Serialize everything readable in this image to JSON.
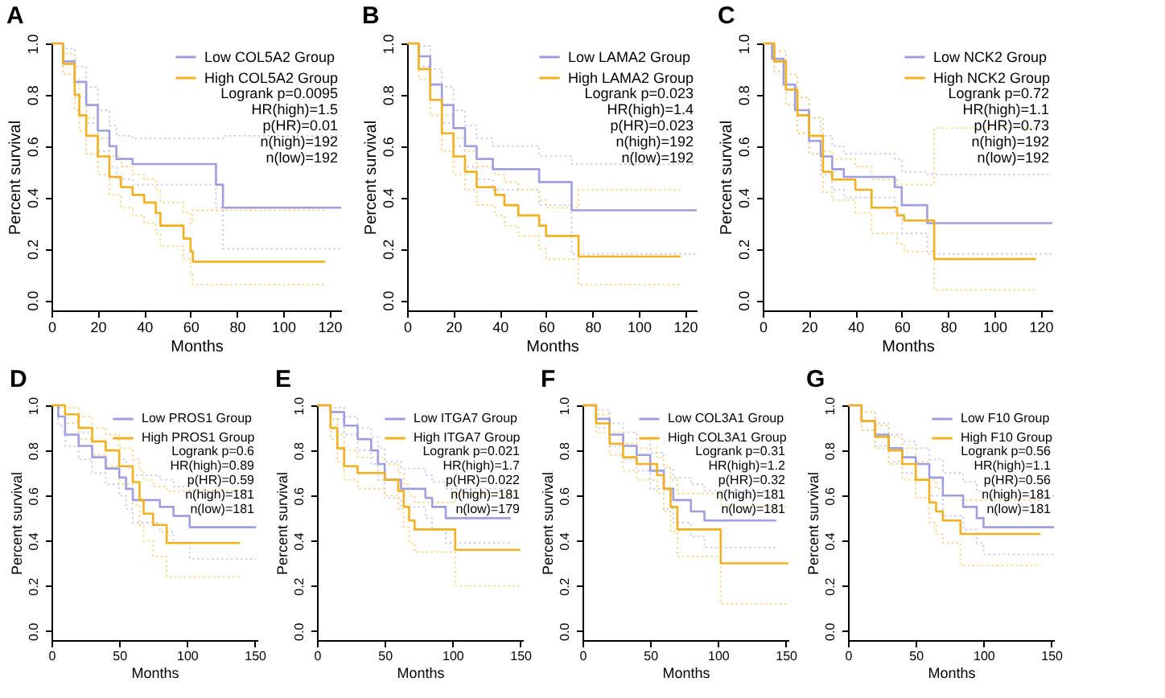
{
  "chart_data": [
    {
      "type": "step",
      "title": "A",
      "xlabel": "Months",
      "ylabel": "Percent survival",
      "xlim": [
        0,
        125
      ],
      "xticks": [
        0,
        20,
        40,
        60,
        80,
        100,
        120
      ],
      "ylim": [
        -0.04,
        1
      ],
      "yticks": [
        {
          "value": 0,
          "label": "0.0"
        },
        {
          "value": 0.2,
          "label": "0.2"
        },
        {
          "value": 0.4,
          "label": "0.4"
        },
        {
          "value": 0.6,
          "label": "0.6"
        },
        {
          "value": 0.8,
          "label": "0.8"
        },
        {
          "value": 1,
          "label": "1.0"
        }
      ],
      "legend": "top right",
      "annotations": [
        "Logrank p=0.0095",
        "HR(high)=1.5",
        "p(HR)=0.01",
        "n(high)=192",
        "n(low)=192"
      ],
      "series": [
        {
          "name": "Low COL5A2 Group",
          "color": "#9e9ee0",
          "x": [
            0,
            5,
            10,
            15,
            20,
            25,
            28,
            35,
            50,
            71,
            74,
            100,
            125
          ],
          "values": [
            1,
            0.93,
            0.85,
            0.76,
            0.66,
            0.6,
            0.55,
            0.53,
            0.53,
            0.45,
            0.36,
            0.36,
            0.36
          ]
        },
        {
          "name": "High COL5A2 Group",
          "color": "#f2b01e",
          "x": [
            0,
            5,
            10,
            12,
            15,
            20,
            25,
            30,
            35,
            40,
            45,
            47,
            55,
            57,
            60,
            61,
            118
          ],
          "values": [
            1,
            0.92,
            0.8,
            0.72,
            0.64,
            0.56,
            0.48,
            0.44,
            0.41,
            0.38,
            0.34,
            0.29,
            0.29,
            0.24,
            0.19,
            0.15,
            0.15
          ]
        },
        {
          "color": "#c8c8ef",
          "line_style": "dotted",
          "x": [
            0,
            5,
            10,
            15,
            20,
            25,
            28,
            35,
            50,
            71,
            74,
            100,
            125
          ],
          "values": [
            1,
            0.88,
            0.79,
            0.69,
            0.58,
            0.52,
            0.47,
            0.45,
            0.45,
            0.36,
            0.2,
            0.2,
            0.2
          ]
        },
        {
          "color": "#c8c8ef",
          "line_style": "dotted",
          "x": [
            0,
            5,
            10,
            15,
            20,
            25,
            28,
            35,
            50,
            71,
            74,
            100,
            125
          ],
          "values": [
            1,
            0.98,
            0.91,
            0.83,
            0.74,
            0.68,
            0.64,
            0.63,
            0.63,
            0.63,
            0.64,
            0.64,
            0.64
          ]
        },
        {
          "color": "#f8d480",
          "line_style": "dotted",
          "x": [
            0,
            5,
            10,
            12,
            15,
            20,
            25,
            30,
            35,
            40,
            45,
            47,
            55,
            57,
            60,
            61,
            118
          ],
          "values": [
            1,
            0.88,
            0.74,
            0.66,
            0.57,
            0.49,
            0.41,
            0.36,
            0.33,
            0.3,
            0.26,
            0.21,
            0.21,
            0.16,
            0.11,
            0.06,
            0.06
          ]
        },
        {
          "color": "#f8d480",
          "line_style": "dotted",
          "x": [
            0,
            5,
            10,
            12,
            15,
            20,
            25,
            30,
            35,
            40,
            45,
            47,
            55,
            57,
            60,
            61,
            118
          ],
          "values": [
            1,
            0.96,
            0.86,
            0.79,
            0.71,
            0.63,
            0.56,
            0.52,
            0.49,
            0.47,
            0.43,
            0.38,
            0.38,
            0.34,
            0.3,
            0.35,
            0.35
          ]
        }
      ]
    },
    {
      "type": "step",
      "title": "B",
      "xlabel": "Months",
      "ylabel": "Percent survival",
      "xlim": [
        0,
        125
      ],
      "xticks": [
        0,
        20,
        40,
        60,
        80,
        100,
        120
      ],
      "ylim": [
        -0.04,
        1
      ],
      "yticks": [
        {
          "value": 0,
          "label": "0.0"
        },
        {
          "value": 0.2,
          "label": "0.2"
        },
        {
          "value": 0.4,
          "label": "0.4"
        },
        {
          "value": 0.6,
          "label": "0.6"
        },
        {
          "value": 0.8,
          "label": "0.8"
        },
        {
          "value": 1,
          "label": "1.0"
        }
      ],
      "legend": "top right",
      "annotations": [
        "Logrank p=0.023",
        "HR(high)=1.4",
        "p(HR)=0.023",
        "n(high)=192",
        "n(low)=192"
      ],
      "series": [
        {
          "name": "Low LAMA2 Group",
          "color": "#9e9ee0",
          "x": [
            0,
            5,
            10,
            15,
            20,
            25,
            30,
            37,
            57,
            60,
            71,
            125
          ],
          "values": [
            1,
            0.95,
            0.84,
            0.76,
            0.67,
            0.6,
            0.55,
            0.51,
            0.46,
            0.46,
            0.35,
            0.35
          ]
        },
        {
          "name": "High LAMA2 Group",
          "color": "#f2b01e",
          "x": [
            0,
            5,
            10,
            15,
            20,
            25,
            30,
            38,
            42,
            48,
            57,
            60,
            62,
            74,
            118
          ],
          "values": [
            1,
            0.9,
            0.78,
            0.65,
            0.56,
            0.5,
            0.44,
            0.41,
            0.37,
            0.33,
            0.29,
            0.25,
            0.25,
            0.17,
            0.17
          ]
        },
        {
          "color": "#c8c8ef",
          "line_style": "dotted",
          "x": [
            0,
            5,
            10,
            15,
            20,
            25,
            30,
            37,
            57,
            60,
            71,
            125
          ],
          "values": [
            1,
            0.91,
            0.78,
            0.69,
            0.6,
            0.52,
            0.47,
            0.43,
            0.37,
            0.37,
            0.18,
            0.18
          ]
        },
        {
          "color": "#c8c8ef",
          "line_style": "dotted",
          "x": [
            0,
            5,
            10,
            15,
            20,
            25,
            30,
            37,
            57,
            60,
            71,
            125
          ],
          "values": [
            1,
            0.99,
            0.9,
            0.83,
            0.74,
            0.68,
            0.63,
            0.6,
            0.56,
            0.56,
            0.53,
            0.53
          ]
        },
        {
          "color": "#f8d480",
          "line_style": "dotted",
          "x": [
            0,
            5,
            10,
            15,
            20,
            25,
            30,
            38,
            42,
            48,
            57,
            60,
            62,
            74,
            118
          ],
          "values": [
            1,
            0.86,
            0.72,
            0.58,
            0.49,
            0.43,
            0.37,
            0.33,
            0.29,
            0.25,
            0.2,
            0.16,
            0.16,
            0.06,
            0.06
          ]
        },
        {
          "color": "#f8d480",
          "line_style": "dotted",
          "x": [
            0,
            5,
            10,
            15,
            20,
            25,
            30,
            38,
            42,
            48,
            57,
            60,
            62,
            74,
            118
          ],
          "values": [
            1,
            0.95,
            0.84,
            0.72,
            0.63,
            0.58,
            0.52,
            0.49,
            0.46,
            0.43,
            0.39,
            0.36,
            0.36,
            0.43,
            0.43
          ]
        }
      ]
    },
    {
      "type": "step",
      "title": "C",
      "xlabel": "Months",
      "ylabel": "Percent survival",
      "xlim": [
        0,
        125
      ],
      "xticks": [
        0,
        20,
        40,
        60,
        80,
        100,
        120
      ],
      "ylim": [
        -0.04,
        1
      ],
      "yticks": [
        {
          "value": 0,
          "label": "0.0"
        },
        {
          "value": 0.2,
          "label": "0.2"
        },
        {
          "value": 0.4,
          "label": "0.4"
        },
        {
          "value": 0.6,
          "label": "0.6"
        },
        {
          "value": 0.8,
          "label": "0.8"
        },
        {
          "value": 1,
          "label": "1.0"
        }
      ],
      "legend": "top right",
      "annotations": [
        "Logrank p=0.72",
        "HR(high)=1.1",
        "p(HR)=0.73",
        "n(high)=192",
        "n(low)=192"
      ],
      "series": [
        {
          "name": "Low NCK2 Group",
          "color": "#9e9ee0",
          "x": [
            0,
            4,
            9,
            14,
            20,
            25,
            30,
            35,
            57,
            60,
            71,
            125
          ],
          "values": [
            1,
            0.94,
            0.84,
            0.74,
            0.62,
            0.56,
            0.51,
            0.48,
            0.44,
            0.37,
            0.3,
            0.3
          ]
        },
        {
          "name": "High NCK2 Group",
          "color": "#f2b01e",
          "x": [
            0,
            5,
            10,
            15,
            20,
            26,
            30,
            40,
            47,
            58,
            61,
            74,
            118
          ],
          "values": [
            1,
            0.93,
            0.82,
            0.72,
            0.64,
            0.5,
            0.47,
            0.43,
            0.36,
            0.33,
            0.31,
            0.16,
            0.16
          ]
        },
        {
          "color": "#c8c8ef",
          "line_style": "dotted",
          "x": [
            0,
            5,
            10,
            15,
            20,
            25,
            30,
            35,
            57,
            60,
            71,
            125
          ],
          "values": [
            1,
            0.89,
            0.76,
            0.65,
            0.57,
            0.49,
            0.43,
            0.4,
            0.34,
            0.26,
            0.18,
            0.18
          ]
        },
        {
          "color": "#c8c8ef",
          "line_style": "dotted",
          "x": [
            0,
            5,
            10,
            15,
            20,
            25,
            30,
            35,
            57,
            60,
            71,
            125
          ],
          "values": [
            1,
            0.97,
            0.88,
            0.79,
            0.71,
            0.64,
            0.6,
            0.57,
            0.55,
            0.5,
            0.49,
            0.49
          ]
        },
        {
          "color": "#f8d480",
          "line_style": "dotted",
          "x": [
            0,
            5,
            10,
            15,
            20,
            26,
            30,
            40,
            47,
            58,
            61,
            74,
            118
          ],
          "values": [
            1,
            0.89,
            0.76,
            0.65,
            0.57,
            0.42,
            0.39,
            0.34,
            0.26,
            0.22,
            0.19,
            0.04,
            0.04
          ]
        },
        {
          "color": "#f8d480",
          "line_style": "dotted",
          "x": [
            0,
            5,
            10,
            15,
            20,
            26,
            30,
            40,
            47,
            58,
            61,
            74,
            118
          ],
          "values": [
            1,
            0.97,
            0.88,
            0.79,
            0.71,
            0.58,
            0.55,
            0.52,
            0.47,
            0.45,
            0.45,
            0.67,
            0.67
          ]
        }
      ]
    },
    {
      "type": "step",
      "title": "D",
      "xlabel": "Months",
      "ylabel": "Percent survival",
      "xlim": [
        0,
        152
      ],
      "xticks": [
        0,
        50,
        100,
        150
      ],
      "ylim": [
        -0.04,
        1
      ],
      "yticks": [
        {
          "value": 0,
          "label": "0.0"
        },
        {
          "value": 0.2,
          "label": "0.2"
        },
        {
          "value": 0.4,
          "label": "0.4"
        },
        {
          "value": 0.6,
          "label": "0.6"
        },
        {
          "value": 0.8,
          "label": "0.8"
        },
        {
          "value": 1,
          "label": "1.0"
        }
      ],
      "legend": "top right",
      "annotations": [
        "Logrank p=0.6",
        "HR(high)=0.89",
        "p(HR)=0.59",
        "n(high)=181",
        "n(low)=181"
      ],
      "series": [
        {
          "name": "Low PROS1 Group",
          "color": "#9e9ee0",
          "x": [
            0,
            5,
            10,
            20,
            30,
            40,
            50,
            55,
            60,
            80,
            90,
            102,
            151
          ],
          "values": [
            1,
            0.95,
            0.87,
            0.82,
            0.77,
            0.72,
            0.68,
            0.63,
            0.58,
            0.55,
            0.51,
            0.46,
            0.46
          ]
        },
        {
          "name": "High PROS1 Group",
          "color": "#f2b01e",
          "x": [
            0,
            10,
            20,
            30,
            40,
            50,
            60,
            65,
            68,
            75,
            85,
            139
          ],
          "values": [
            1,
            0.96,
            0.9,
            0.84,
            0.8,
            0.73,
            0.66,
            0.58,
            0.52,
            0.47,
            0.39,
            0.39
          ]
        },
        {
          "color": "#c8c8ef",
          "line_style": "dotted",
          "x": [
            0,
            5,
            10,
            20,
            30,
            40,
            50,
            55,
            60,
            80,
            90,
            102,
            151
          ],
          "values": [
            1,
            0.91,
            0.82,
            0.76,
            0.7,
            0.65,
            0.6,
            0.54,
            0.48,
            0.44,
            0.39,
            0.32,
            0.32
          ]
        },
        {
          "color": "#c8c8ef",
          "line_style": "dotted",
          "x": [
            0,
            5,
            10,
            20,
            30,
            40,
            50,
            55,
            60,
            80,
            90,
            102,
            151
          ],
          "values": [
            1,
            0.99,
            0.92,
            0.88,
            0.84,
            0.8,
            0.76,
            0.72,
            0.69,
            0.67,
            0.64,
            0.62,
            0.62
          ]
        },
        {
          "color": "#f8d480",
          "line_style": "dotted",
          "x": [
            0,
            10,
            20,
            30,
            40,
            50,
            60,
            65,
            68,
            75,
            85,
            139
          ],
          "values": [
            1,
            0.92,
            0.85,
            0.78,
            0.73,
            0.65,
            0.56,
            0.47,
            0.4,
            0.33,
            0.24,
            0.24
          ]
        },
        {
          "color": "#f8d480",
          "line_style": "dotted",
          "x": [
            0,
            10,
            20,
            30,
            40,
            50,
            60,
            65,
            68,
            75,
            85,
            139
          ],
          "values": [
            1,
            0.99,
            0.95,
            0.9,
            0.87,
            0.81,
            0.76,
            0.71,
            0.67,
            0.64,
            0.62,
            0.62
          ]
        }
      ]
    },
    {
      "type": "step",
      "title": "E",
      "xlabel": "Months",
      "ylabel": "Percent survival",
      "xlim": [
        0,
        152
      ],
      "xticks": [
        0,
        50,
        100,
        150
      ],
      "ylim": [
        -0.04,
        1
      ],
      "yticks": [
        {
          "value": 0,
          "label": "0.0"
        },
        {
          "value": 0.2,
          "label": "0.2"
        },
        {
          "value": 0.4,
          "label": "0.4"
        },
        {
          "value": 0.6,
          "label": "0.6"
        },
        {
          "value": 0.8,
          "label": "0.8"
        },
        {
          "value": 1,
          "label": "1.0"
        }
      ],
      "legend": "top right",
      "annotations": [
        "Logrank p=0.021",
        "HR(high)=1.7",
        "p(HR)=0.022",
        "n(high)=181",
        "n(low)=179"
      ],
      "series": [
        {
          "name": "Low ITGA7 Group",
          "color": "#9e9ee0",
          "x": [
            0,
            10,
            20,
            30,
            40,
            45,
            50,
            62,
            80,
            85,
            95,
            143
          ],
          "values": [
            1,
            0.97,
            0.91,
            0.85,
            0.8,
            0.74,
            0.67,
            0.63,
            0.59,
            0.55,
            0.5,
            0.5
          ]
        },
        {
          "name": "High ITGA7 Group",
          "color": "#f2b01e",
          "x": [
            0,
            10,
            15,
            20,
            30,
            50,
            60,
            64,
            68,
            72,
            102,
            150
          ],
          "values": [
            1,
            0.9,
            0.81,
            0.73,
            0.7,
            0.67,
            0.62,
            0.55,
            0.49,
            0.45,
            0.36,
            0.36
          ]
        },
        {
          "color": "#c8c8ef",
          "line_style": "dotted",
          "x": [
            0,
            10,
            20,
            30,
            40,
            45,
            50,
            62,
            80,
            85,
            95,
            143
          ],
          "values": [
            1,
            0.94,
            0.87,
            0.8,
            0.74,
            0.67,
            0.59,
            0.55,
            0.5,
            0.45,
            0.39,
            0.39
          ]
        },
        {
          "color": "#c8c8ef",
          "line_style": "dotted",
          "x": [
            0,
            10,
            20,
            30,
            40,
            45,
            50,
            62,
            80,
            85,
            95,
            143
          ],
          "values": [
            1,
            0.99,
            0.95,
            0.9,
            0.86,
            0.81,
            0.75,
            0.72,
            0.69,
            0.66,
            0.63,
            0.63
          ]
        },
        {
          "color": "#f8d480",
          "line_style": "dotted",
          "x": [
            0,
            10,
            15,
            20,
            30,
            50,
            60,
            64,
            68,
            72,
            102,
            150
          ],
          "values": [
            1,
            0.85,
            0.75,
            0.67,
            0.63,
            0.6,
            0.54,
            0.46,
            0.39,
            0.35,
            0.2,
            0.2
          ]
        },
        {
          "color": "#f8d480",
          "line_style": "dotted",
          "x": [
            0,
            10,
            15,
            20,
            30,
            50,
            60,
            64,
            68,
            72,
            102,
            150
          ],
          "values": [
            1,
            0.94,
            0.87,
            0.8,
            0.77,
            0.74,
            0.7,
            0.65,
            0.6,
            0.57,
            0.61,
            0.61
          ]
        }
      ]
    },
    {
      "type": "step",
      "title": "F",
      "xlabel": "Months",
      "ylabel": "Percent survival",
      "xlim": [
        0,
        152
      ],
      "xticks": [
        0,
        50,
        100,
        150
      ],
      "ylim": [
        -0.04,
        1
      ],
      "yticks": [
        {
          "value": 0,
          "label": "0.0"
        },
        {
          "value": 0.2,
          "label": "0.2"
        },
        {
          "value": 0.4,
          "label": "0.4"
        },
        {
          "value": 0.6,
          "label": "0.6"
        },
        {
          "value": 0.8,
          "label": "0.8"
        },
        {
          "value": 1,
          "label": "1.0"
        }
      ],
      "legend": "top right",
      "annotations": [
        "Logrank p=0.31",
        "HR(high)=1.2",
        "p(HR)=0.32",
        "n(high)=181",
        "n(low)=181"
      ],
      "series": [
        {
          "name": "Low COL3A1 Group",
          "color": "#9e9ee0",
          "x": [
            0,
            10,
            20,
            30,
            40,
            50,
            60,
            67,
            80,
            90,
            143
          ],
          "values": [
            1,
            0.94,
            0.87,
            0.82,
            0.78,
            0.71,
            0.63,
            0.58,
            0.53,
            0.49,
            0.49
          ]
        },
        {
          "name": "High COL3A1 Group",
          "color": "#f2b01e",
          "x": [
            0,
            10,
            20,
            30,
            40,
            55,
            60,
            65,
            70,
            102,
            152
          ],
          "values": [
            1,
            0.92,
            0.83,
            0.77,
            0.74,
            0.69,
            0.63,
            0.55,
            0.45,
            0.3,
            0.3
          ]
        },
        {
          "color": "#c8c8ef",
          "line_style": "dotted",
          "x": [
            0,
            10,
            20,
            30,
            40,
            50,
            60,
            67,
            80,
            90,
            143
          ],
          "values": [
            1,
            0.9,
            0.82,
            0.76,
            0.71,
            0.63,
            0.54,
            0.48,
            0.42,
            0.37,
            0.37
          ]
        },
        {
          "color": "#c8c8ef",
          "line_style": "dotted",
          "x": [
            0,
            10,
            20,
            30,
            40,
            50,
            60,
            67,
            80,
            90,
            143
          ],
          "values": [
            1,
            0.98,
            0.92,
            0.88,
            0.85,
            0.79,
            0.72,
            0.68,
            0.65,
            0.62,
            0.62
          ]
        },
        {
          "color": "#f8d480",
          "line_style": "dotted",
          "x": [
            0,
            10,
            20,
            30,
            40,
            55,
            60,
            65,
            70,
            102,
            152
          ],
          "values": [
            1,
            0.88,
            0.78,
            0.71,
            0.67,
            0.61,
            0.53,
            0.44,
            0.33,
            0.12,
            0.12
          ]
        },
        {
          "color": "#f8d480",
          "line_style": "dotted",
          "x": [
            0,
            10,
            20,
            30,
            40,
            55,
            60,
            65,
            70,
            102,
            152
          ],
          "values": [
            1,
            0.96,
            0.88,
            0.83,
            0.81,
            0.77,
            0.73,
            0.67,
            0.61,
            0.55,
            0.55
          ]
        }
      ]
    },
    {
      "type": "step",
      "title": "G",
      "xlabel": "Months",
      "ylabel": "Percent survival",
      "xlim": [
        0,
        152
      ],
      "xticks": [
        0,
        50,
        100,
        150
      ],
      "ylim": [
        -0.04,
        1
      ],
      "yticks": [
        {
          "value": 0,
          "label": "0.0"
        },
        {
          "value": 0.2,
          "label": "0.2"
        },
        {
          "value": 0.4,
          "label": "0.4"
        },
        {
          "value": 0.6,
          "label": "0.6"
        },
        {
          "value": 0.8,
          "label": "0.8"
        },
        {
          "value": 1,
          "label": "1.0"
        }
      ],
      "legend": "top right",
      "annotations": [
        "Logrank p=0.56",
        "HR(high)=1.1",
        "p(HR)=0.56",
        "n(high)=181",
        "n(low)=181"
      ],
      "series": [
        {
          "name": "Low F10 Group",
          "color": "#9e9ee0",
          "x": [
            0,
            10,
            20,
            30,
            40,
            50,
            60,
            70,
            85,
            95,
            100,
            152
          ],
          "values": [
            1,
            0.93,
            0.87,
            0.81,
            0.77,
            0.74,
            0.68,
            0.6,
            0.55,
            0.5,
            0.46,
            0.46
          ]
        },
        {
          "name": "High F10 Group",
          "color": "#f2b01e",
          "x": [
            0,
            10,
            20,
            30,
            40,
            50,
            60,
            65,
            70,
            83,
            142
          ],
          "values": [
            1,
            0.93,
            0.86,
            0.8,
            0.74,
            0.67,
            0.57,
            0.53,
            0.49,
            0.43,
            0.43
          ]
        },
        {
          "color": "#c8c8ef",
          "line_style": "dotted",
          "x": [
            0,
            10,
            20,
            30,
            40,
            50,
            60,
            70,
            85,
            95,
            100,
            152
          ],
          "values": [
            1,
            0.89,
            0.82,
            0.75,
            0.7,
            0.67,
            0.6,
            0.51,
            0.45,
            0.39,
            0.34,
            0.34
          ]
        },
        {
          "color": "#c8c8ef",
          "line_style": "dotted",
          "x": [
            0,
            10,
            20,
            30,
            40,
            50,
            60,
            70,
            85,
            95,
            100,
            152
          ],
          "values": [
            1,
            0.97,
            0.92,
            0.87,
            0.84,
            0.81,
            0.76,
            0.7,
            0.66,
            0.62,
            0.6,
            0.6
          ]
        },
        {
          "color": "#f8d480",
          "line_style": "dotted",
          "x": [
            0,
            10,
            20,
            30,
            40,
            50,
            60,
            65,
            70,
            83,
            142
          ],
          "values": [
            1,
            0.89,
            0.81,
            0.74,
            0.67,
            0.59,
            0.48,
            0.43,
            0.39,
            0.29,
            0.29
          ]
        },
        {
          "color": "#f8d480",
          "line_style": "dotted",
          "x": [
            0,
            10,
            20,
            30,
            40,
            50,
            60,
            65,
            70,
            83,
            142
          ],
          "values": [
            1,
            0.97,
            0.91,
            0.86,
            0.81,
            0.75,
            0.67,
            0.63,
            0.6,
            0.58,
            0.58
          ]
        }
      ]
    }
  ]
}
